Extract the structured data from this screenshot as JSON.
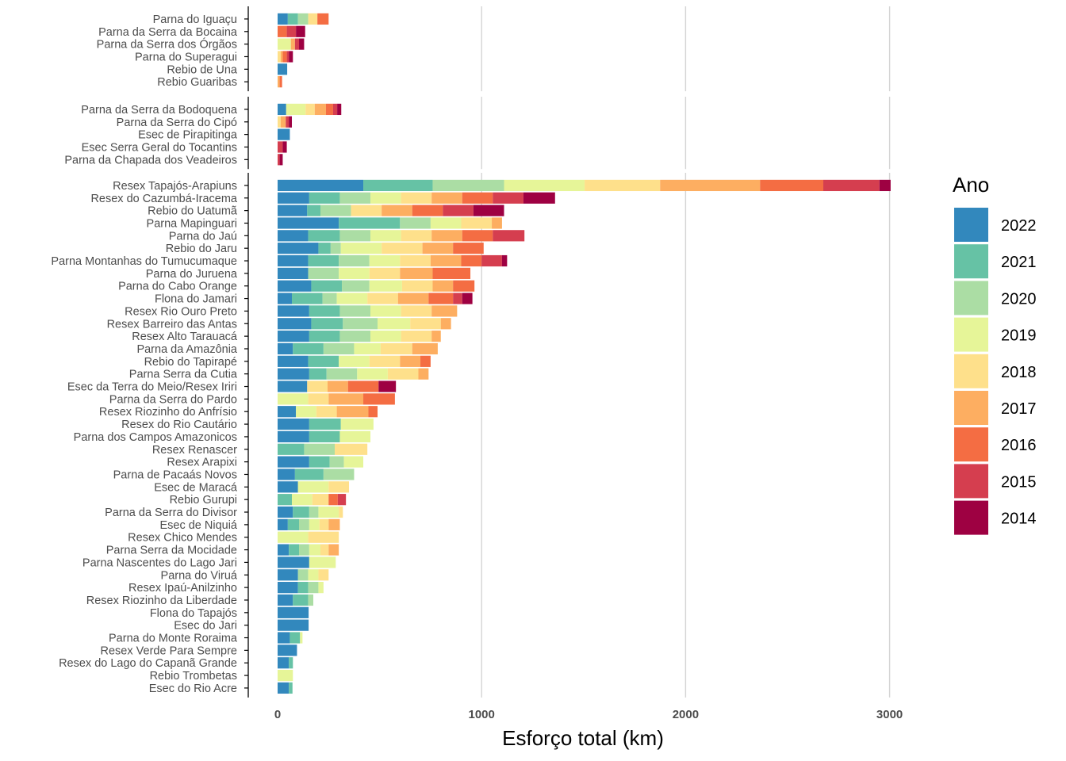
{
  "chart_data": {
    "type": "bar",
    "orientation": "horizontal",
    "stacked": true,
    "xlabel": "Esforço total (km)",
    "ylabel": "",
    "xlim": [
      0,
      3500
    ],
    "xticks": [
      0,
      1000,
      2000,
      3000
    ],
    "grid": "vertical major lines",
    "legend": {
      "title": "Ano",
      "position": "right",
      "entries": [
        {
          "label": "2022",
          "color": "#3288bd"
        },
        {
          "label": "2021",
          "color": "#66c2a5"
        },
        {
          "label": "2020",
          "color": "#abdda4"
        },
        {
          "label": "2019",
          "color": "#e6f598"
        },
        {
          "label": "2018",
          "color": "#fee08b"
        },
        {
          "label": "2017",
          "color": "#fdae61"
        },
        {
          "label": "2016",
          "color": "#f46d43"
        },
        {
          "label": "2015",
          "color": "#d53e4f"
        },
        {
          "label": "2014",
          "color": "#9e0142"
        }
      ]
    },
    "series_order": [
      "2022",
      "2021",
      "2020",
      "2019",
      "2018",
      "2017",
      "2016",
      "2015",
      "2014"
    ],
    "panels": [
      {
        "categories": [
          {
            "name": "Parna do Iguaçu",
            "values": [
              50,
              50,
              50,
              0,
              45,
              0,
              55,
              0,
              0
            ]
          },
          {
            "name": "Parna da Serra da Bocaina",
            "values": [
              0,
              0,
              0,
              0,
              0,
              0,
              45,
              45,
              45
            ]
          },
          {
            "name": "Parna da Serra dos Órgãos",
            "values": [
              0,
              0,
              0,
              65,
              0,
              20,
              0,
              20,
              25
            ]
          },
          {
            "name": "Parna do Superagui",
            "values": [
              0,
              0,
              0,
              0,
              15,
              10,
              20,
              10,
              20
            ]
          },
          {
            "name": "Rebio de Una",
            "values": [
              47,
              0,
              0,
              0,
              0,
              0,
              0,
              0,
              0
            ]
          },
          {
            "name": "Rebio Guaribas",
            "values": [
              0,
              0,
              0,
              0,
              0,
              10,
              12,
              0,
              0
            ]
          }
        ]
      },
      {
        "categories": [
          {
            "name": "Parna da Serra da Bodoquena",
            "values": [
              42,
              0,
              0,
              95,
              45,
              55,
              35,
              20,
              20
            ]
          },
          {
            "name": "Parna da Serra do Cipó",
            "values": [
              0,
              0,
              0,
              0,
              15,
              25,
              0,
              15,
              15
            ]
          },
          {
            "name": "Esec de Pirapitinga",
            "values": [
              60,
              0,
              0,
              0,
              0,
              0,
              0,
              0,
              0
            ]
          },
          {
            "name": "Esec Serra Geral do Tocantins",
            "values": [
              0,
              0,
              0,
              0,
              0,
              0,
              0,
              25,
              20
            ]
          },
          {
            "name": "Parna da Chapada dos Veadeiros",
            "values": [
              0,
              0,
              0,
              0,
              0,
              0,
              0,
              10,
              15
            ]
          }
        ]
      },
      {
        "categories": [
          {
            "name": "Resex Tapajós-Arapiuns",
            "values": [
              420,
              340,
              350,
              395,
              370,
              490,
              310,
              275,
              55
            ]
          },
          {
            "name": "Resex do Cazumbá-Iracema",
            "values": [
              155,
              150,
              150,
              150,
              150,
              150,
              150,
              150,
              155
            ]
          },
          {
            "name": "Rebio do Uatumã",
            "values": [
              145,
              65,
              150,
              0,
              150,
              150,
              150,
              150,
              150
            ]
          },
          {
            "name": "Parna Mapinguari",
            "values": [
              300,
              300,
              150,
              150,
              150,
              50,
              0,
              0,
              0
            ]
          },
          {
            "name": "Parna do Jaú",
            "values": [
              150,
              155,
              150,
              150,
              150,
              150,
              150,
              155,
              0
            ]
          },
          {
            "name": "Rebio do Jaru",
            "values": [
              200,
              60,
              50,
              200,
              200,
              150,
              150,
              0,
              0
            ]
          },
          {
            "name": "Parna Montanhas do Tumucumaque",
            "values": [
              150,
              150,
              150,
              150,
              150,
              150,
              100,
              100,
              25
            ]
          },
          {
            "name": "Parna do Juruena",
            "values": [
              150,
              0,
              150,
              150,
              150,
              160,
              185,
              0,
              0
            ]
          },
          {
            "name": "Parna do Cabo Orange",
            "values": [
              165,
              150,
              135,
              160,
              150,
              100,
              105,
              0,
              0
            ]
          },
          {
            "name": "Flona do Jamari",
            "values": [
              70,
              150,
              70,
              150,
              150,
              150,
              120,
              45,
              50
            ]
          },
          {
            "name": "Resex Rio Ouro Preto",
            "values": [
              155,
              150,
              150,
              150,
              150,
              125,
              0,
              0,
              0
            ]
          },
          {
            "name": "Resex Barreiro das Antas",
            "values": [
              165,
              155,
              170,
              160,
              150,
              50,
              0,
              0,
              0
            ]
          },
          {
            "name": "Resex Alto Tarauacá",
            "values": [
              155,
              150,
              150,
              150,
              150,
              45,
              0,
              0,
              0
            ]
          },
          {
            "name": "Parna da Amazônia",
            "values": [
              75,
              150,
              150,
              130,
              155,
              125,
              0,
              0,
              0
            ]
          },
          {
            "name": "Rebio do Tapirapé",
            "values": [
              150,
              150,
              0,
              150,
              150,
              100,
              50,
              0,
              0
            ]
          },
          {
            "name": "Parna Serra da Cutia",
            "values": [
              155,
              85,
              150,
              150,
              150,
              50,
              0,
              0,
              0
            ]
          },
          {
            "name": "Esec da Terra do Meio/Resex Iriri",
            "values": [
              145,
              0,
              0,
              0,
              100,
              100,
              150,
              0,
              85
            ]
          },
          {
            "name": "Parna da Serra do Pardo",
            "values": [
              0,
              0,
              0,
              150,
              100,
              170,
              155,
              0,
              0
            ]
          },
          {
            "name": "Resex Riozinho do Anfrísio",
            "values": [
              90,
              0,
              0,
              100,
              100,
              155,
              45,
              0,
              0
            ]
          },
          {
            "name": "Resex do Rio Cautário",
            "values": [
              155,
              155,
              0,
              160,
              0,
              0,
              0,
              0,
              0
            ]
          },
          {
            "name": "Parna dos Campos Amazonicos",
            "values": [
              155,
              150,
              0,
              150,
              0,
              0,
              0,
              0,
              0
            ]
          },
          {
            "name": "Resex Renascer",
            "values": [
              0,
              130,
              150,
              0,
              160,
              0,
              0,
              0,
              0
            ]
          },
          {
            "name": "Resex Arapixi",
            "values": [
              155,
              100,
              70,
              95,
              0,
              0,
              0,
              0,
              0
            ]
          },
          {
            "name": "Parna de Pacaás Novos",
            "values": [
              85,
              140,
              150,
              0,
              0,
              0,
              0,
              0,
              0
            ]
          },
          {
            "name": "Esec de Maracá",
            "values": [
              100,
              0,
              0,
              150,
              100,
              0,
              0,
              0,
              0
            ]
          },
          {
            "name": "Rebio Gurupi",
            "values": [
              0,
              70,
              0,
              100,
              80,
              0,
              45,
              40,
              0
            ]
          },
          {
            "name": "Parna da Serra do Divisor",
            "values": [
              75,
              80,
              45,
              100,
              20,
              0,
              0,
              0,
              0
            ]
          },
          {
            "name": "Esec de Niquiá",
            "values": [
              50,
              55,
              50,
              50,
              45,
              55,
              0,
              0,
              0
            ]
          },
          {
            "name": "Resex Chico Mendes",
            "values": [
              0,
              0,
              0,
              150,
              150,
              0,
              0,
              0,
              0
            ]
          },
          {
            "name": "Parna Serra da Mocidade",
            "values": [
              55,
              50,
              50,
              55,
              40,
              50,
              0,
              0,
              0
            ]
          },
          {
            "name": "Parna Nascentes do Lago Jari",
            "values": [
              155,
              0,
              0,
              130,
              0,
              0,
              0,
              0,
              0
            ]
          },
          {
            "name": "Parna do Viruá",
            "values": [
              100,
              0,
              50,
              50,
              50,
              0,
              0,
              0,
              0
            ]
          },
          {
            "name": "Resex Ipaú-Anilzinho",
            "values": [
              100,
              50,
              50,
              25,
              0,
              0,
              0,
              0,
              0
            ]
          },
          {
            "name": "Resex Riozinho da Liberdade",
            "values": [
              75,
              75,
              25,
              0,
              0,
              0,
              0,
              0,
              0
            ]
          },
          {
            "name": "Flona do Tapajós",
            "values": [
              152,
              0,
              0,
              0,
              0,
              0,
              0,
              0,
              0
            ]
          },
          {
            "name": "Esec do Jari",
            "values": [
              152,
              0,
              0,
              0,
              0,
              0,
              0,
              0,
              0
            ]
          },
          {
            "name": "Parna do Monte Roraima",
            "values": [
              60,
              50,
              0,
              12,
              0,
              0,
              0,
              0,
              0
            ]
          },
          {
            "name": "Resex Verde Para Sempre",
            "values": [
              95,
              0,
              0,
              0,
              0,
              0,
              0,
              0,
              0
            ]
          },
          {
            "name": "Resex do Lago do Capanã Grande",
            "values": [
              55,
              20,
              0,
              0,
              0,
              0,
              0,
              0,
              0
            ]
          },
          {
            "name": "Rebio Trombetas",
            "values": [
              0,
              0,
              0,
              75,
              0,
              0,
              0,
              0,
              0
            ]
          },
          {
            "name": "Esec do Rio Acre",
            "values": [
              55,
              18,
              0,
              0,
              0,
              0,
              0,
              0,
              0
            ]
          }
        ]
      }
    ]
  }
}
